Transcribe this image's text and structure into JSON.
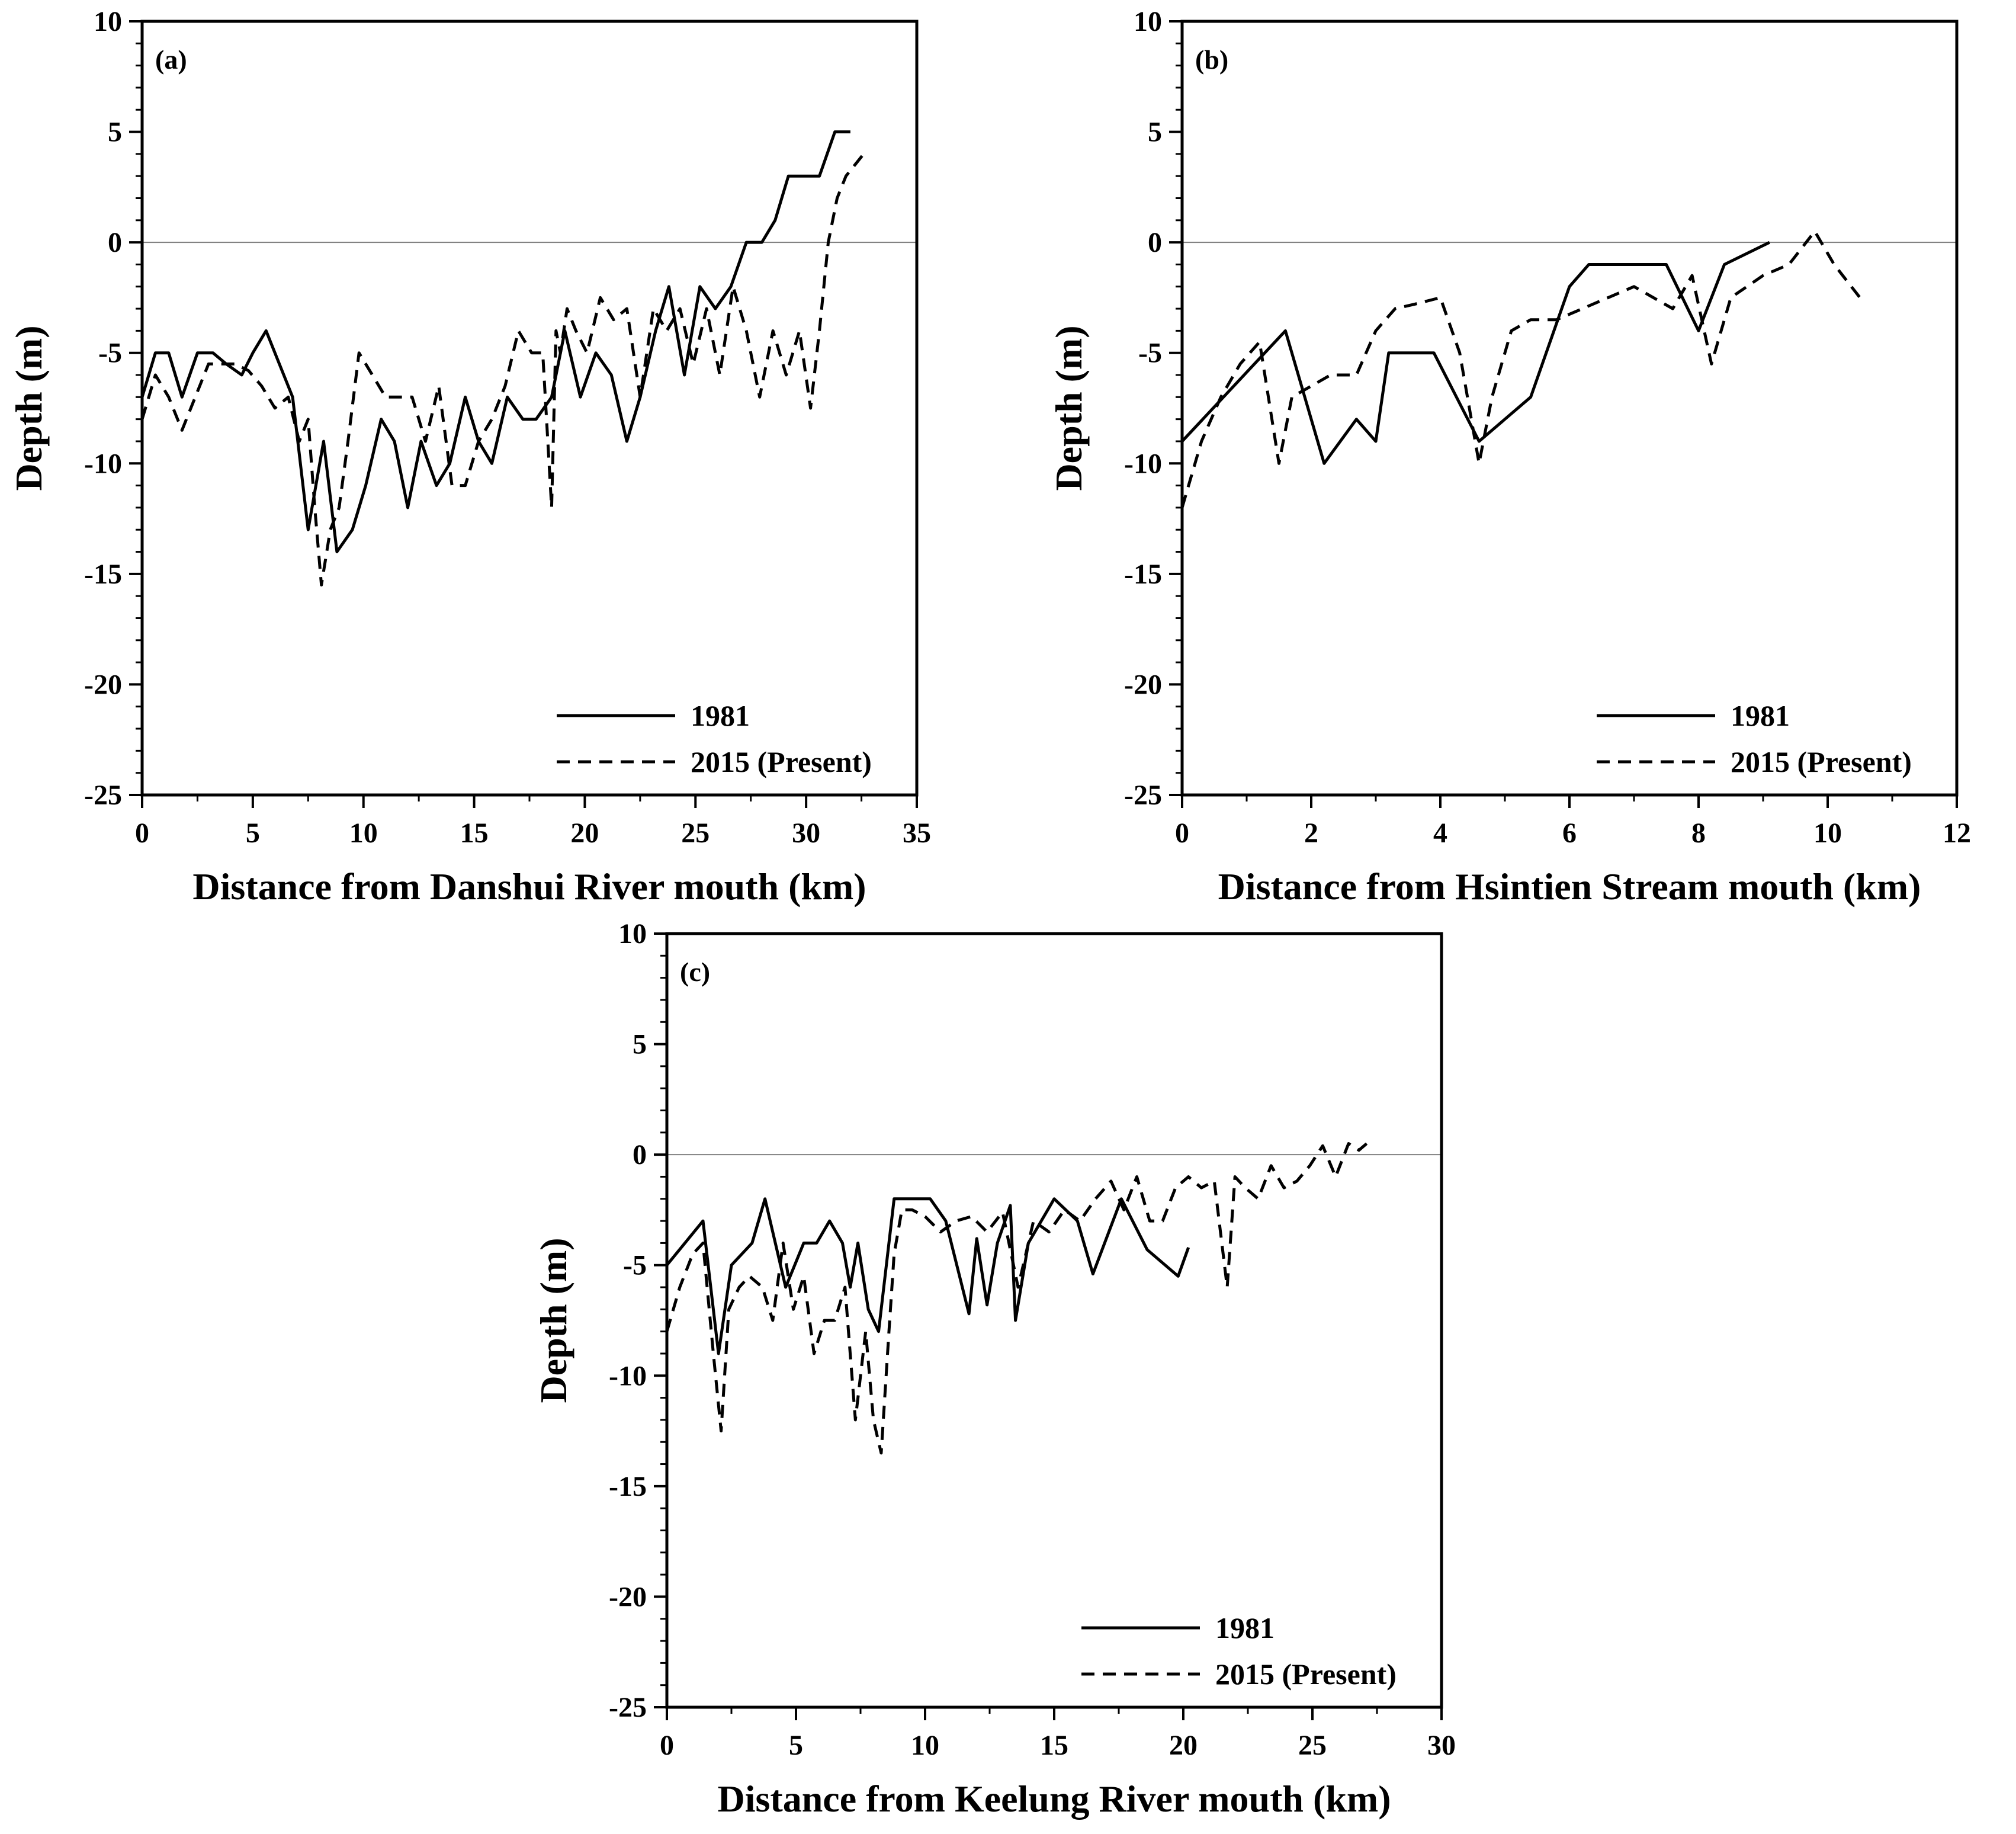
{
  "chart_data": [
    {
      "type": "line",
      "panel_label": "(a)",
      "xlabel": "Distance from Danshui River mouth (km)",
      "ylabel": "Depth (m)",
      "xlim": [
        0,
        35
      ],
      "ylim": [
        -25,
        10
      ],
      "xticks": [
        0,
        5,
        10,
        15,
        20,
        25,
        30,
        35
      ],
      "yticks": [
        -25,
        -20,
        -15,
        -10,
        -5,
        0,
        5,
        10
      ],
      "zero_line": true,
      "legend_position": "bottom-right",
      "series": [
        {
          "name": "1981",
          "style": "solid",
          "x": [
            0,
            0.6,
            1.2,
            1.8,
            2.5,
            3.2,
            3.8,
            4.5,
            5.0,
            5.6,
            6.2,
            6.8,
            7.5,
            8.2,
            8.8,
            9.5,
            10.1,
            10.8,
            11.4,
            12.0,
            12.6,
            13.3,
            13.9,
            14.6,
            15.2,
            15.8,
            16.5,
            17.2,
            17.8,
            18.5,
            19.1,
            19.8,
            20.5,
            21.2,
            21.9,
            22.5,
            23.2,
            23.8,
            24.5,
            25.2,
            25.9,
            26.6,
            27.3,
            28.0,
            28.6,
            29.2,
            29.9,
            30.6,
            31.3,
            32.0
          ],
          "y": [
            -7,
            -5,
            -5,
            -7,
            -5,
            -5,
            -5.5,
            -6,
            -5,
            -4,
            -5.5,
            -7,
            -13,
            -9,
            -14,
            -13,
            -11,
            -8,
            -9,
            -12,
            -9,
            -11,
            -10,
            -7,
            -9,
            -10,
            -7,
            -8,
            -8,
            -7,
            -4,
            -7,
            -5,
            -6,
            -9,
            -7,
            -4,
            -2,
            -6,
            -2,
            -3,
            -2,
            0,
            0,
            1,
            3,
            3,
            3,
            5,
            5
          ]
        },
        {
          "name": "2015 (Present)",
          "style": "dashed",
          "x": [
            0,
            0.6,
            1.2,
            1.8,
            2.4,
            3.0,
            3.6,
            4.2,
            4.8,
            5.4,
            6.0,
            6.6,
            7.1,
            7.5,
            7.8,
            8.1,
            8.5,
            8.9,
            9.3,
            9.8,
            10.4,
            11.0,
            11.6,
            12.2,
            12.8,
            13.4,
            14.0,
            14.6,
            15.2,
            15.8,
            16.4,
            17.0,
            17.6,
            18.1,
            18.5,
            18.7,
            18.9,
            19.2,
            19.6,
            20.1,
            20.7,
            21.3,
            21.9,
            22.5,
            23.1,
            23.7,
            24.3,
            24.9,
            25.5,
            26.1,
            26.7,
            27.3,
            27.9,
            28.5,
            29.1,
            29.7,
            30.2,
            30.6,
            31.0,
            31.4,
            31.8,
            32.2,
            32.6
          ],
          "y": [
            -8,
            -6,
            -7,
            -8.5,
            -7,
            -5.5,
            -5.5,
            -5.5,
            -5.8,
            -6.5,
            -7.5,
            -7,
            -9,
            -8,
            -12,
            -15.5,
            -13,
            -12,
            -9,
            -5,
            -6,
            -7,
            -7,
            -7,
            -9,
            -6.5,
            -11,
            -11,
            -9,
            -8,
            -6.5,
            -4,
            -5,
            -5,
            -12,
            -4,
            -5,
            -3,
            -4,
            -5,
            -2.5,
            -3.5,
            -3,
            -7,
            -3,
            -4,
            -3,
            -5.5,
            -3,
            -6,
            -2,
            -4,
            -7,
            -4,
            -6,
            -4,
            -7.5,
            -4,
            0,
            2,
            3,
            3.5,
            4
          ]
        }
      ]
    },
    {
      "type": "line",
      "panel_label": "(b)",
      "xlabel": "Distance from Hsintien Stream mouth (km)",
      "ylabel": "Depth (m)",
      "xlim": [
        0,
        12
      ],
      "ylim": [
        -25,
        10
      ],
      "xticks": [
        0,
        2,
        4,
        6,
        8,
        10,
        12
      ],
      "yticks": [
        -25,
        -20,
        -15,
        -10,
        -5,
        0,
        5,
        10
      ],
      "zero_line": true,
      "legend_position": "bottom-right",
      "series": [
        {
          "name": "1981",
          "style": "solid",
          "x": [
            0,
            1.6,
            2.2,
            2.7,
            3.0,
            3.2,
            3.9,
            4.6,
            5.4,
            6.0,
            6.3,
            7.5,
            8.0,
            8.4,
            9.1
          ],
          "y": [
            -9,
            -4,
            -10,
            -8,
            -9,
            -5,
            -5,
            -9,
            -7,
            -2,
            -1,
            -1,
            -4,
            -1,
            0
          ]
        },
        {
          "name": "2015 (Present)",
          "style": "dashed",
          "x": [
            0,
            0.3,
            0.6,
            0.9,
            1.2,
            1.5,
            1.7,
            2.0,
            2.3,
            2.7,
            3.0,
            3.3,
            3.6,
            4.0,
            4.3,
            4.6,
            4.8,
            5.1,
            5.4,
            5.8,
            6.2,
            6.6,
            7.0,
            7.3,
            7.6,
            7.9,
            8.2,
            8.5,
            9.0,
            9.4,
            9.8,
            10.1,
            10.5
          ],
          "y": [
            -12,
            -9,
            -7,
            -5.5,
            -4.5,
            -10,
            -7,
            -6.5,
            -6,
            -6,
            -4,
            -3,
            -2.8,
            -2.5,
            -5,
            -10,
            -7,
            -4,
            -3.5,
            -3.5,
            -3,
            -2.5,
            -2,
            -2.5,
            -3,
            -1.5,
            -5.5,
            -2.5,
            -1.5,
            -1,
            0.5,
            -1,
            -2.5
          ]
        }
      ]
    },
    {
      "type": "line",
      "panel_label": "(c)",
      "xlabel": "Distance from Keelung River mouth (km)",
      "ylabel": "Depth (m)",
      "xlim": [
        0,
        30
      ],
      "ylim": [
        -25,
        10
      ],
      "xticks": [
        0,
        5,
        10,
        15,
        20,
        25,
        30
      ],
      "yticks": [
        -25,
        -20,
        -15,
        -10,
        -5,
        0,
        5,
        10
      ],
      "zero_line": true,
      "legend_position": "bottom-right",
      "series": [
        {
          "name": "1981",
          "style": "solid",
          "x": [
            0,
            1.4,
            2.0,
            2.5,
            3.3,
            3.8,
            4.6,
            5.3,
            5.8,
            6.3,
            6.8,
            7.1,
            7.4,
            7.8,
            8.2,
            8.8,
            9.4,
            10.2,
            10.8,
            11.7,
            12.0,
            12.4,
            12.8,
            13.3,
            13.5,
            14.0,
            15.0,
            15.9,
            16.5,
            17.6,
            18.6,
            19.8,
            20.2
          ],
          "y": [
            -5,
            -3,
            -9,
            -5,
            -4,
            -2,
            -6,
            -4,
            -4,
            -3,
            -4,
            -6,
            -4,
            -7,
            -8,
            -2,
            -2,
            -2,
            -3,
            -7.2,
            -3.8,
            -6.8,
            -4,
            -2.3,
            -7.5,
            -4,
            -2,
            -3,
            -5.4,
            -2,
            -4.3,
            -5.5,
            -4.2
          ]
        },
        {
          "name": "2015 (Present)",
          "style": "dashed",
          "x": [
            0,
            0.5,
            1.0,
            1.4,
            1.8,
            2.1,
            2.4,
            2.8,
            3.2,
            3.7,
            4.1,
            4.5,
            4.9,
            5.3,
            5.7,
            6.1,
            6.5,
            6.9,
            7.3,
            7.7,
            8.0,
            8.3,
            8.6,
            8.8,
            9.1,
            9.5,
            10.0,
            10.6,
            11.2,
            11.8,
            12.4,
            13.0,
            13.6,
            14.2,
            14.8,
            15.4,
            16.0,
            16.6,
            17.2,
            17.7,
            18.2,
            18.7,
            19.2,
            19.7,
            20.2,
            20.7,
            21.2,
            21.7,
            22.0,
            22.4,
            22.9,
            23.4,
            23.9,
            24.4,
            24.9,
            25.4,
            25.9,
            26.4,
            26.8,
            27.1
          ],
          "y": [
            -8,
            -6,
            -4.5,
            -4,
            -9,
            -12.5,
            -7,
            -6,
            -5.5,
            -6,
            -7.5,
            -4,
            -7,
            -5.5,
            -9,
            -7.5,
            -7.5,
            -6,
            -12,
            -8,
            -12,
            -13.5,
            -8,
            -4.5,
            -2.5,
            -2.5,
            -2.8,
            -3.5,
            -3,
            -2.8,
            -3.5,
            -2.6,
            -6,
            -3,
            -3.5,
            -2.5,
            -3,
            -2,
            -1.2,
            -2.5,
            -1,
            -3,
            -3,
            -1.5,
            -1,
            -1.5,
            -1.2,
            -6,
            -1,
            -1.5,
            -2,
            -0.5,
            -1.5,
            -1.2,
            -0.5,
            0.4,
            -1,
            0.5,
            0.2,
            0.5
          ]
        }
      ]
    }
  ],
  "figure": {
    "line_color": "#000000",
    "zero_line_color": "#808080",
    "background": "#ffffff"
  }
}
